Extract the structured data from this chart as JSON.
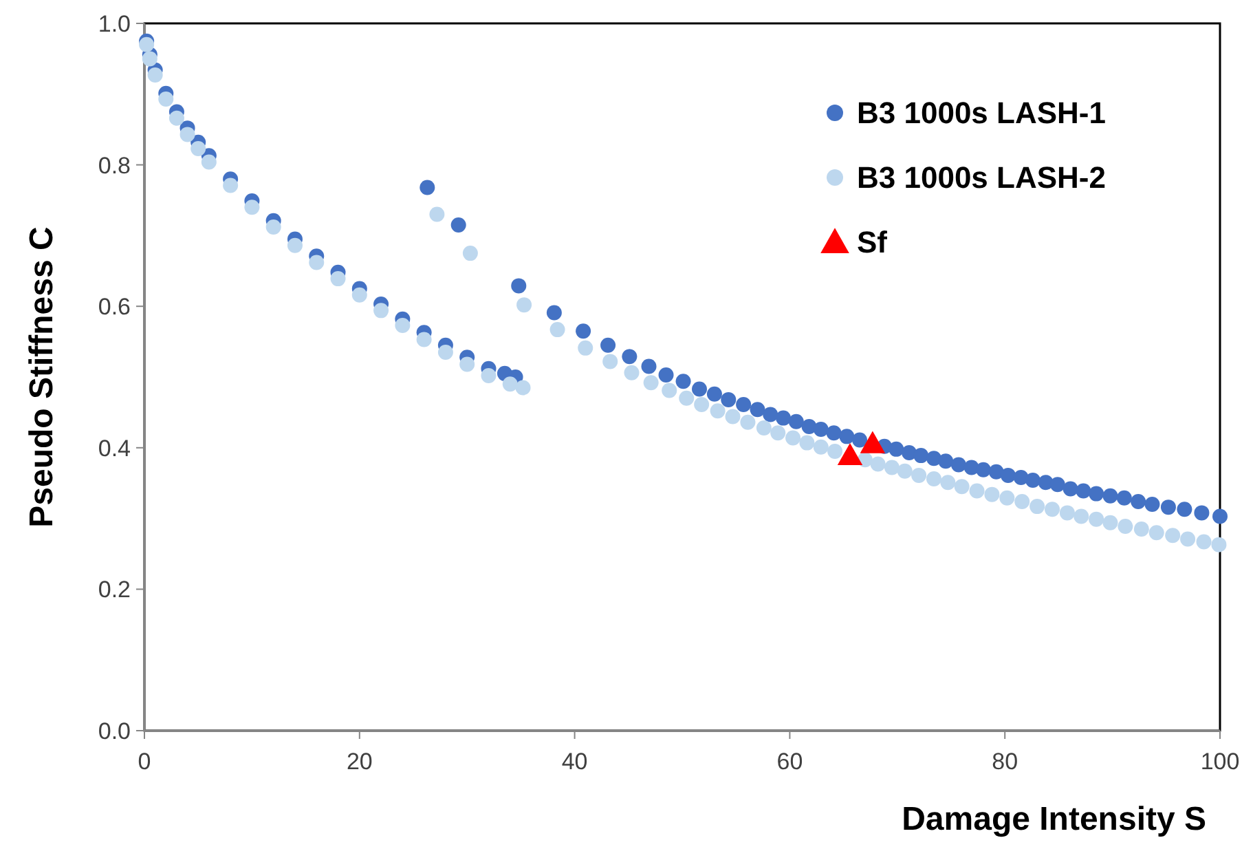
{
  "chart_data": {
    "type": "scatter",
    "xlabel": "Damage Intensity S",
    "ylabel": "Pseudo Stiffness C",
    "xlim": [
      0,
      100
    ],
    "xticks": [
      0,
      20,
      40,
      60,
      80,
      100
    ],
    "ylim": [
      0,
      1
    ],
    "yticks": [
      {
        "value": 0,
        "label": "0.0"
      },
      {
        "value": 0.2,
        "label": "0.2"
      },
      {
        "value": 0.4,
        "label": "0.4"
      },
      {
        "value": 0.6,
        "label": "0.6"
      },
      {
        "value": 0.8,
        "label": "0.8"
      },
      {
        "value": 1,
        "label": "1.0"
      }
    ],
    "grid": false,
    "legend": "top right",
    "series": [
      {
        "name": "B3 1000s LASH-1",
        "color": "#4472c4",
        "marker": "circle",
        "x": [
          0.2,
          0.5,
          1,
          2,
          3,
          4,
          5,
          6,
          8,
          10,
          12,
          14,
          16,
          18,
          20,
          22,
          24,
          26,
          28,
          30,
          32,
          33.5,
          34.5,
          26.3,
          29.2,
          34.8,
          38.1,
          40.8,
          43.1,
          45.1,
          46.9,
          48.5,
          50.1,
          51.6,
          53.0,
          54.3,
          55.7,
          57.0,
          58.2,
          59.4,
          60.6,
          61.8,
          62.9,
          64.1,
          65.3,
          66.5,
          68.8,
          69.9,
          71.1,
          72.2,
          73.4,
          74.5,
          75.7,
          76.9,
          78.0,
          79.2,
          80.3,
          81.5,
          82.6,
          83.8,
          84.9,
          86.1,
          87.3,
          88.5,
          89.8,
          91.1,
          92.4,
          93.7,
          95.2,
          96.7,
          98.3,
          100.0
        ],
        "values": [
          0.975,
          0.956,
          0.934,
          0.901,
          0.875,
          0.852,
          0.832,
          0.813,
          0.78,
          0.749,
          0.721,
          0.695,
          0.671,
          0.648,
          0.625,
          0.603,
          0.582,
          0.563,
          0.545,
          0.528,
          0.512,
          0.505,
          0.5,
          0.768,
          0.715,
          0.629,
          0.591,
          0.565,
          0.545,
          0.529,
          0.515,
          0.503,
          0.494,
          0.483,
          0.476,
          0.468,
          0.461,
          0.454,
          0.447,
          0.442,
          0.437,
          0.43,
          0.426,
          0.421,
          0.416,
          0.411,
          0.402,
          0.398,
          0.393,
          0.389,
          0.385,
          0.381,
          0.376,
          0.372,
          0.369,
          0.366,
          0.361,
          0.358,
          0.354,
          0.351,
          0.348,
          0.342,
          0.339,
          0.335,
          0.332,
          0.329,
          0.324,
          0.32,
          0.316,
          0.313,
          0.308,
          0.303
        ]
      },
      {
        "name": "B3 1000s LASH-2",
        "color": "#bdd7ee",
        "marker": "circle",
        "x": [
          0.2,
          0.5,
          1,
          2,
          3,
          4,
          5,
          6,
          8,
          10,
          12,
          14,
          16,
          18,
          20,
          22,
          24,
          26,
          28,
          30,
          32,
          34,
          35.2,
          27.2,
          30.3,
          35.3,
          38.4,
          41.0,
          43.3,
          45.3,
          47.1,
          48.8,
          50.4,
          51.8,
          53.3,
          54.7,
          56.1,
          57.6,
          58.9,
          60.3,
          61.6,
          62.9,
          64.2,
          67.0,
          68.2,
          69.5,
          70.7,
          72.0,
          73.4,
          74.7,
          76.0,
          77.4,
          78.8,
          80.2,
          81.6,
          83.0,
          84.4,
          85.8,
          87.1,
          88.5,
          89.8,
          91.2,
          92.7,
          94.1,
          95.6,
          97.0,
          98.5,
          99.9
        ],
        "values": [
          0.97,
          0.95,
          0.927,
          0.893,
          0.866,
          0.843,
          0.823,
          0.804,
          0.771,
          0.74,
          0.712,
          0.686,
          0.662,
          0.639,
          0.616,
          0.594,
          0.573,
          0.553,
          0.535,
          0.518,
          0.502,
          0.49,
          0.485,
          0.73,
          0.675,
          0.602,
          0.567,
          0.541,
          0.522,
          0.506,
          0.492,
          0.481,
          0.47,
          0.461,
          0.452,
          0.444,
          0.436,
          0.428,
          0.421,
          0.414,
          0.407,
          0.401,
          0.395,
          0.383,
          0.377,
          0.372,
          0.367,
          0.361,
          0.356,
          0.351,
          0.345,
          0.339,
          0.334,
          0.329,
          0.324,
          0.317,
          0.313,
          0.308,
          0.303,
          0.299,
          0.294,
          0.289,
          0.285,
          0.28,
          0.276,
          0.271,
          0.267,
          0.263
        ]
      },
      {
        "name": "Sf",
        "color": "#ff0000",
        "marker": "triangle",
        "x": [
          65.6,
          67.7
        ],
        "values": [
          0.389,
          0.406
        ]
      }
    ]
  }
}
